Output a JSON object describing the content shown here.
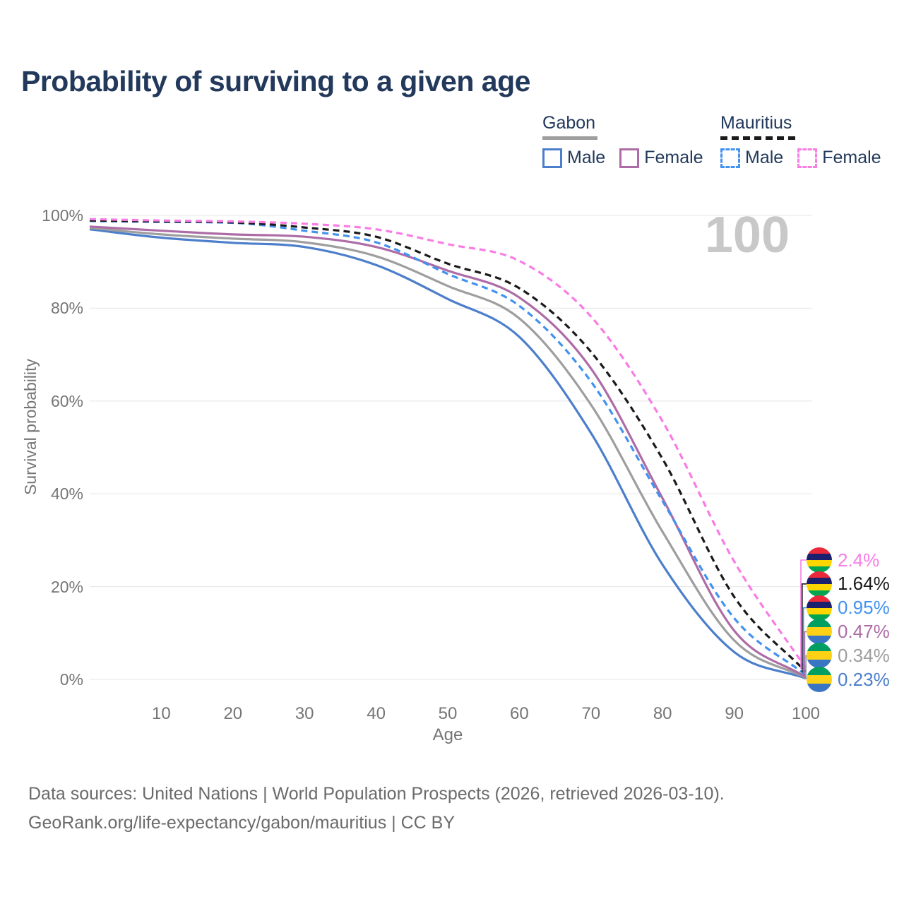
{
  "title": "Probability of surviving to a given age",
  "watermark": "100",
  "legend": {
    "groups": [
      {
        "label": "Gabon",
        "line_style": "solid",
        "underline_color": "#9E9E9E",
        "items": [
          {
            "label": "Male",
            "color": "#4C7FCB"
          },
          {
            "label": "Female",
            "color": "#AD6CA6"
          }
        ]
      },
      {
        "label": "Mauritius",
        "line_style": "dashed",
        "underline_color": "#1A1A1A",
        "items": [
          {
            "label": "Male",
            "color": "#4292F0"
          },
          {
            "label": "Female",
            "color": "#F97CE5"
          }
        ]
      }
    ]
  },
  "chart_data": {
    "type": "line",
    "title": "Probability of surviving to a given age",
    "xlabel": "Age",
    "ylabel": "Survival probability",
    "xlim": [
      0,
      100
    ],
    "ylim": [
      0,
      100
    ],
    "grid": "horizontal",
    "legend_position": "top-right",
    "x_ticks": [
      10,
      20,
      30,
      40,
      50,
      60,
      70,
      80,
      90,
      100
    ],
    "y_ticks": [
      {
        "value": 0,
        "label": "0%"
      },
      {
        "value": 20,
        "label": "20%"
      },
      {
        "value": 40,
        "label": "40%"
      },
      {
        "value": 60,
        "label": "60%"
      },
      {
        "value": 80,
        "label": "80%"
      },
      {
        "value": 100,
        "label": "100%"
      }
    ],
    "ages": [
      0,
      10,
      20,
      30,
      40,
      50,
      60,
      70,
      80,
      90,
      100
    ],
    "series": [
      {
        "name": "Mauritius Female",
        "country": "Mauritius",
        "sex": "Female",
        "color": "#F97CE5",
        "dash": true,
        "flag": "mauritius",
        "end_label": "2.4%",
        "values": [
          99.2,
          98.9,
          98.7,
          98.2,
          97.0,
          93.8,
          90.2,
          78.2,
          55.6,
          25.4,
          2.4
        ]
      },
      {
        "name": "Mauritius Both sexes",
        "country": "Mauritius",
        "sex": "Both",
        "color": "#1A1A1A",
        "dash": true,
        "flag": "mauritius",
        "end_label": "1.64%",
        "values": [
          98.9,
          98.7,
          98.5,
          97.4,
          95.4,
          89.6,
          84.3,
          70.6,
          47.5,
          17.8,
          1.64
        ]
      },
      {
        "name": "Mauritius Male",
        "country": "Mauritius",
        "sex": "Male",
        "color": "#4292F0",
        "dash": true,
        "flag": "mauritius",
        "end_label": "0.95%",
        "values": [
          98.8,
          98.6,
          98.4,
          96.7,
          94.2,
          87.4,
          80.5,
          64.2,
          38.4,
          13.2,
          0.95
        ]
      },
      {
        "name": "Gabon Female",
        "country": "Gabon",
        "sex": "Female",
        "color": "#AD6CA6",
        "dash": false,
        "flag": "gabon",
        "end_label": "0.47%",
        "values": [
          97.6,
          96.7,
          95.9,
          95.4,
          93.2,
          88.1,
          82.3,
          67.0,
          39.0,
          10.5,
          0.47
        ]
      },
      {
        "name": "Gabon Both sexes",
        "country": "Gabon",
        "sex": "Both",
        "color": "#9E9E9E",
        "dash": false,
        "flag": "gabon",
        "end_label": "0.34%",
        "values": [
          97.3,
          95.9,
          95.0,
          94.2,
          91.2,
          84.8,
          77.8,
          59.2,
          31.8,
          8.4,
          0.34
        ]
      },
      {
        "name": "Gabon Male",
        "country": "Gabon",
        "sex": "Male",
        "color": "#4C7FCB",
        "dash": false,
        "flag": "gabon",
        "end_label": "0.23%",
        "values": [
          97.0,
          95.2,
          94.1,
          93.2,
          89.3,
          82.0,
          73.8,
          53.1,
          24.7,
          5.9,
          0.23
        ]
      }
    ],
    "flags": {
      "mauritius": [
        "#EA2839",
        "#1A206D",
        "#FFD500",
        "#00A551"
      ],
      "gabon": [
        "#009E60",
        "#FCD116",
        "#3A75C4"
      ]
    }
  },
  "footer": {
    "line1": "Data sources: United Nations | World Population Prospects (2026, retrieved 2026-03-10).",
    "line2": "GeoRank.org/life-expectancy/gabon/mauritius | CC BY"
  }
}
